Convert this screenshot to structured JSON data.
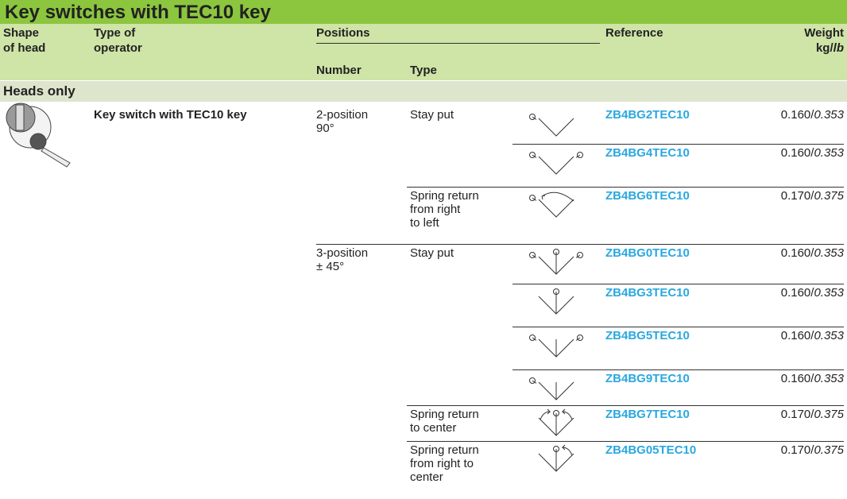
{
  "title": "Key switches with TEC10 key",
  "header": {
    "shape": [
      "Shape",
      "of head"
    ],
    "operator": [
      "Type of",
      "operator"
    ],
    "positions": "Positions",
    "number": "Number",
    "type": "Type",
    "reference": "Reference",
    "weight": [
      "Weight",
      "kg/",
      "lb"
    ]
  },
  "section": "Heads only",
  "rows": [
    {
      "operator": "Key switch with TEC10 key",
      "number": [
        "2-position",
        "90°"
      ],
      "type": [
        "Stay put"
      ],
      "reference": "ZB4BG2TEC10",
      "weight": [
        "0.160/",
        "0.353"
      ]
    },
    {
      "reference": "ZB4BG4TEC10",
      "weight": [
        "0.160/",
        "0.353"
      ]
    },
    {
      "type": [
        "Spring return",
        "from right",
        "to left"
      ],
      "reference": "ZB4BG6TEC10",
      "weight": [
        "0.170/",
        "0.375"
      ]
    },
    {
      "number": [
        "3-position",
        "± 45°"
      ],
      "type": [
        "Stay put"
      ],
      "reference": "ZB4BG0TEC10",
      "weight": [
        "0.160/",
        "0.353"
      ]
    },
    {
      "reference": "ZB4BG3TEC10",
      "weight": [
        "0.160/",
        "0.353"
      ]
    },
    {
      "reference": "ZB4BG5TEC10",
      "weight": [
        "0.160/",
        "0.353"
      ]
    },
    {
      "reference": "ZB4BG9TEC10",
      "weight": [
        "0.160/",
        "0.353"
      ]
    },
    {
      "type": [
        "Spring return",
        "to center"
      ],
      "reference": "ZB4BG7TEC10",
      "weight": [
        "0.170/",
        "0.375"
      ]
    },
    {
      "type": [
        "Spring return",
        "from right to",
        "center"
      ],
      "reference": "ZB4BG05TEC10",
      "weight": [
        "0.170/",
        "0.375"
      ]
    }
  ]
}
